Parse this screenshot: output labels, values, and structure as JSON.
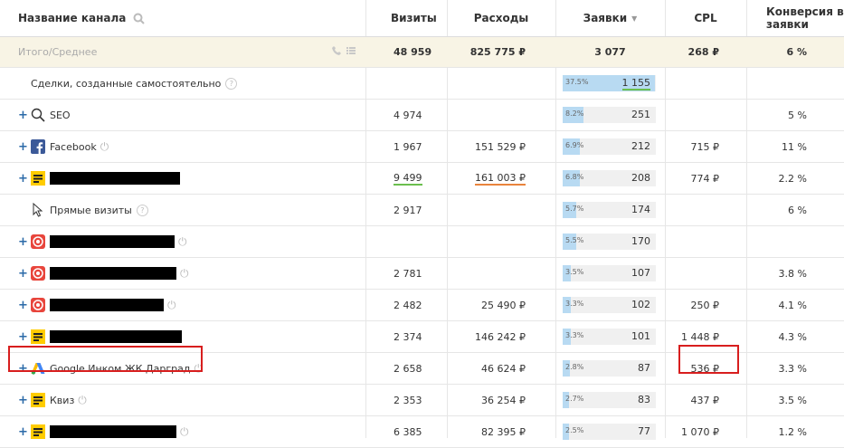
{
  "header": {
    "channel": "Название канала",
    "visits": "Визиты",
    "expenses": "Расходы",
    "requests": "Заявки",
    "requests_sort": "▼",
    "cpl": "CPL",
    "conversion": "Конверсия в заявки"
  },
  "total": {
    "label": "Итого/Среднее",
    "visits": "48 959",
    "expenses": "825 775 ₽",
    "requests": "3 077",
    "cpl": "268 ₽",
    "conversion": "6 %"
  },
  "rows": [
    {
      "label": "Сделки, созданные самостоятельно",
      "visits": "",
      "expenses": "",
      "pct": "37.5%",
      "requests": "1 155",
      "cpl": "",
      "conversion": "",
      "fill": 0.99
    },
    {
      "label": "SEO",
      "visits": "4 974",
      "expenses": "",
      "pct": "8.2%",
      "requests": "251",
      "cpl": "",
      "conversion": "5 %",
      "fill": 0.22
    },
    {
      "label": "Facebook",
      "visits": "1 967",
      "expenses": "151 529 ₽",
      "pct": "6.9%",
      "requests": "212",
      "cpl": "715 ₽",
      "conversion": "11 %",
      "fill": 0.18
    },
    {
      "label": "",
      "visits": "9 499",
      "expenses": "161 003 ₽",
      "pct": "6.8%",
      "requests": "208",
      "cpl": "774 ₽",
      "conversion": "2.2 %",
      "fill": 0.18
    },
    {
      "label": "Прямые визиты",
      "visits": "2 917",
      "expenses": "",
      "pct": "5.7%",
      "requests": "174",
      "cpl": "",
      "conversion": "6 %",
      "fill": 0.15
    },
    {
      "label": "",
      "visits": "",
      "expenses": "",
      "pct": "5.5%",
      "requests": "170",
      "cpl": "",
      "conversion": "",
      "fill": 0.15
    },
    {
      "label": "",
      "visits": "2 781",
      "expenses": "",
      "pct": "3.5%",
      "requests": "107",
      "cpl": "",
      "conversion": "3.8 %",
      "fill": 0.09
    },
    {
      "label": "",
      "visits": "2 482",
      "expenses": "25 490 ₽",
      "pct": "3.3%",
      "requests": "102",
      "cpl": "250 ₽",
      "conversion": "4.1 %",
      "fill": 0.09
    },
    {
      "label": "",
      "visits": "2 374",
      "expenses": "146 242 ₽",
      "pct": "3.3%",
      "requests": "101",
      "cpl": "1 448 ₽",
      "conversion": "4.3 %",
      "fill": 0.09
    },
    {
      "label": "Google Инком ЖК Дарград",
      "visits": "2 658",
      "expenses": "46 624 ₽",
      "pct": "2.8%",
      "requests": "87",
      "cpl": "536 ₽",
      "conversion": "3.3 %",
      "fill": 0.08
    },
    {
      "label": "Квиз",
      "visits": "2 353",
      "expenses": "36 254 ₽",
      "pct": "2.7%",
      "requests": "83",
      "cpl": "437 ₽",
      "conversion": "3.5 %",
      "fill": 0.07
    },
    {
      "label": "",
      "visits": "6 385",
      "expenses": "82 395 ₽",
      "pct": "2.5%",
      "requests": "77",
      "cpl": "1 070 ₽",
      "conversion": "1.2 %",
      "fill": 0.07
    }
  ],
  "colors": {
    "bar_fill": "#b8daf2",
    "highlight_red": "#d81e1e",
    "plus_blue": "#2b6aa8",
    "total_bg": "#f8f4e5"
  },
  "icons": [
    "search-icon",
    "phone-icon",
    "list-icon",
    "help-icon",
    "magnifier-icon",
    "facebook-icon",
    "yandex-direct-icon",
    "cursor-icon",
    "target-icon",
    "google-ads-icon",
    "plug-icon"
  ]
}
